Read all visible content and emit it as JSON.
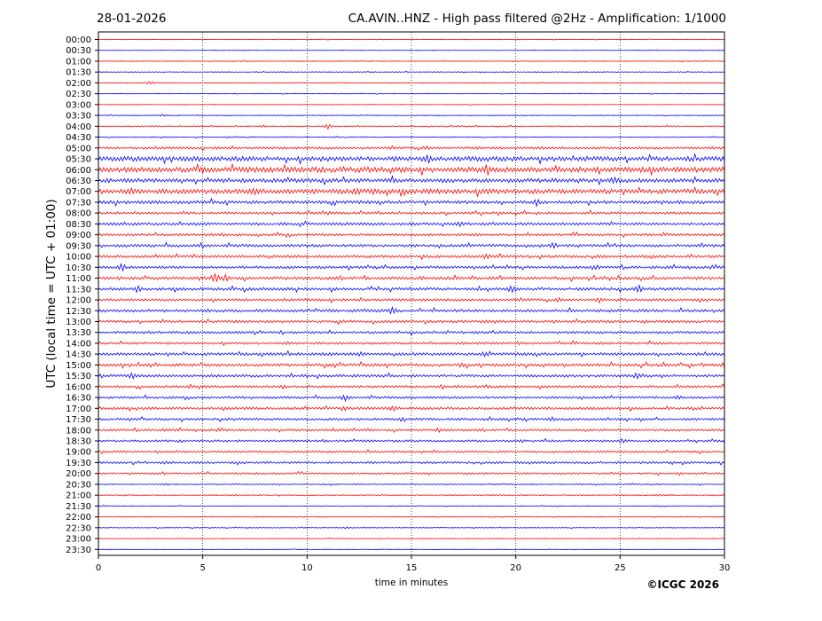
{
  "header": {
    "date": "28-01-2026",
    "title": "CA.AVIN..HNZ - High pass filtered @2Hz - Amplification: 1/1000"
  },
  "chart_data": {
    "type": "line",
    "title": "CA.AVIN..HNZ - High pass filtered @2Hz - Amplification: 1/1000",
    "xlabel": "time in minutes",
    "ylabel": "UTC (local time = UTC + 01:00)",
    "xlim": [
      0,
      30
    ],
    "x_ticks": [
      0,
      5,
      10,
      15,
      20,
      25,
      30
    ],
    "x_grid": "dotted vertical lines at every 5 minutes",
    "trace_colors": [
      "#ff0000",
      "#0000ff"
    ],
    "row_labels": [
      "00:00",
      "00:30",
      "01:00",
      "01:30",
      "02:00",
      "02:30",
      "03:00",
      "03:30",
      "04:00",
      "04:30",
      "05:00",
      "05:30",
      "06:00",
      "06:30",
      "07:00",
      "07:30",
      "08:00",
      "08:30",
      "09:00",
      "09:30",
      "10:00",
      "10:30",
      "11:00",
      "11:30",
      "12:00",
      "12:30",
      "13:00",
      "13:30",
      "14:00",
      "14:30",
      "15:00",
      "15:30",
      "16:00",
      "16:30",
      "17:00",
      "17:30",
      "18:00",
      "18:30",
      "19:00",
      "19:30",
      "20:00",
      "20:30",
      "21:00",
      "21:30",
      "22:00",
      "22:30",
      "23:00",
      "23:30"
    ],
    "noise_level": [
      0.3,
      0.3,
      0.35,
      0.4,
      0.35,
      0.3,
      0.3,
      0.45,
      0.6,
      0.5,
      1.3,
      2.6,
      3.0,
      2.3,
      2.6,
      1.8,
      1.3,
      1.5,
      1.3,
      1.6,
      1.5,
      1.4,
      1.6,
      1.6,
      1.4,
      1.6,
      1.4,
      1.4,
      1.3,
      1.6,
      1.6,
      1.5,
      1.3,
      1.3,
      1.4,
      1.3,
      1.2,
      1.2,
      1.1,
      1.2,
      1.0,
      0.6,
      0.5,
      0.4,
      0.35,
      0.4,
      0.3,
      0.25
    ],
    "events": [
      [],
      [],
      [],
      [],
      [
        [
          2.5,
          2.0
        ]
      ],
      [],
      [],
      [
        [
          3.1,
          1.5
        ]
      ],
      [
        [
          11.0,
          3.0
        ],
        [
          7.9,
          1.5
        ]
      ],
      [
        [
          6.2,
          1.2
        ]
      ],
      [
        [
          15.7,
          2.5
        ],
        [
          18.2,
          2.0
        ]
      ],
      [
        [
          15.8,
          6.0
        ],
        [
          4.8,
          3.0
        ]
      ],
      [
        [
          12.5,
          3.5
        ]
      ],
      [
        [
          24.7,
          5.0
        ],
        [
          16.5,
          2.5
        ]
      ],
      [
        [
          7.5,
          5.5
        ],
        [
          12.4,
          5.0
        ],
        [
          13.2,
          4.5
        ]
      ],
      [
        [
          21.0,
          4.5
        ]
      ],
      [
        [
          11.0,
          2.5
        ]
      ],
      [
        [
          17.3,
          3.5
        ]
      ],
      [
        [
          18.0,
          2.0
        ]
      ],
      [
        [
          21.8,
          4.0
        ],
        [
          17.6,
          2.5
        ]
      ],
      [
        [
          18.6,
          3.5
        ]
      ],
      [
        [
          1.1,
          5.0
        ],
        [
          23.9,
          3.0
        ]
      ],
      [
        [
          5.6,
          6.0
        ],
        [
          6.1,
          4.5
        ],
        [
          15.5,
          3.0
        ]
      ],
      [
        [
          1.9,
          4.5
        ],
        [
          19.8,
          5.5
        ],
        [
          25.9,
          5.0
        ]
      ],
      [
        [
          24.0,
          3.5
        ]
      ],
      [
        [
          14.1,
          5.0
        ]
      ],
      [
        [
          18.6,
          2.5
        ]
      ],
      [],
      [
        [
          20.2,
          2.0
        ]
      ],
      [
        [
          18.5,
          3.5
        ],
        [
          12.6,
          3.0
        ]
      ],
      [
        [
          17.4,
          3.0
        ],
        [
          30.0,
          4.0
        ]
      ],
      [
        [
          1.6,
          5.0
        ],
        [
          0.1,
          3.0
        ],
        [
          25.8,
          3.5
        ]
      ],
      [
        [
          8.8,
          2.5
        ]
      ],
      [
        [
          11.8,
          4.5
        ],
        [
          27.8,
          3.0
        ]
      ],
      [
        [
          11.8,
          3.0
        ],
        [
          14.1,
          3.5
        ]
      ],
      [
        [
          21.7,
          3.0
        ],
        [
          14.5,
          2.5
        ]
      ],
      [
        [
          16.3,
          3.0
        ],
        [
          3.2,
          2.5
        ]
      ],
      [
        [
          25.1,
          3.0
        ]
      ],
      [],
      [
        [
          3.2,
          2.0
        ]
      ],
      [
        [
          3.1,
          2.0
        ]
      ],
      [
        [
          0.6,
          1.0
        ]
      ],
      [
        [
          6.5,
          1.2
        ],
        [
          26.9,
          1.2
        ]
      ],
      [],
      [
        [
          16.3,
          1.0
        ]
      ],
      [
        [
          11.9,
          1.2
        ]
      ],
      [],
      []
    ]
  },
  "watermark": {
    "copyright": "©ICGC 2026"
  }
}
